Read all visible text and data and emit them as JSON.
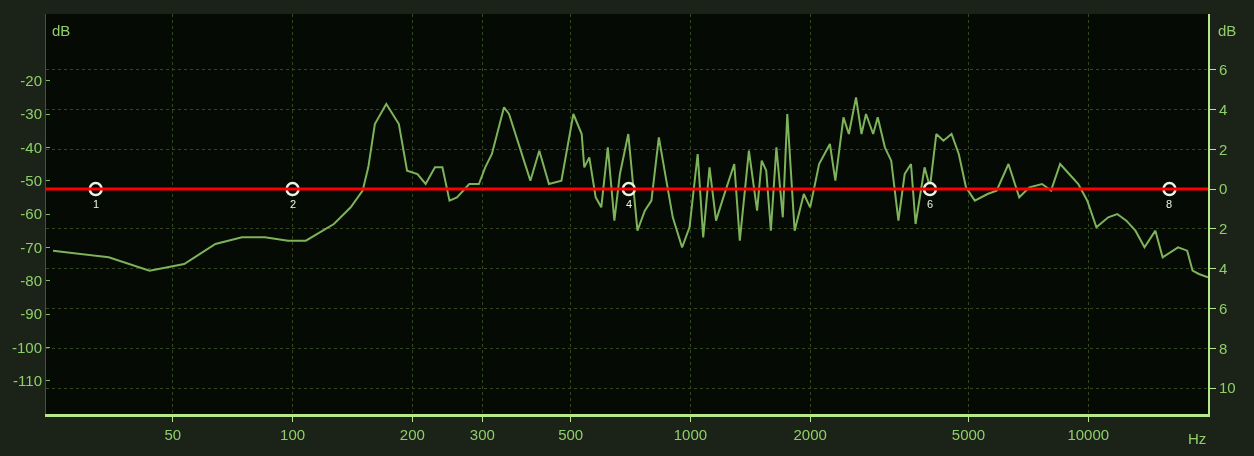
{
  "chart_data": {
    "type": "line",
    "xlabel": "Hz",
    "ylabel": "dB",
    "y2label": "dB",
    "log": "x",
    "xlim": [
      24,
      20000
    ],
    "xticks": [
      50,
      100,
      200,
      300,
      500,
      1000,
      2000,
      5000,
      10000
    ],
    "ylim": [
      -120,
      0
    ],
    "yticks": [
      -20,
      -30,
      -40,
      -50,
      -60,
      -70,
      -80,
      -90,
      -100,
      -110
    ],
    "y2lim": [
      -11.3,
      8.8
    ],
    "y2ticks": [
      6,
      4,
      2,
      0,
      {
        "value": -2,
        "label": "2"
      },
      {
        "value": -4,
        "label": "4"
      },
      {
        "value": -6,
        "label": "6"
      },
      {
        "value": -8,
        "label": "8"
      },
      {
        "value": -10,
        "label": "10"
      }
    ],
    "grid": true,
    "ref_lines": [
      {
        "axis": "y2",
        "value": 0,
        "color": "#ff0000"
      }
    ],
    "series": [
      {
        "color": "#7db35a",
        "x": [
          25,
          34.5,
          43.7,
          53.4,
          64,
          74.6,
          85.2,
          97.4,
          108,
          127,
          140,
          150,
          155,
          161,
          172,
          185,
          194,
          206,
          216,
          228,
          238,
          248,
          259,
          278,
          294,
          305,
          317,
          340,
          350,
          396,
          417,
          441,
          474,
          508,
          533,
          541,
          557,
          578,
          597,
          620,
          644,
          665,
          698,
          736,
          768,
          798,
          833,
          870,
          903,
          953,
          995,
          1043,
          1077,
          1117,
          1160,
          1210,
          1289,
          1331,
          1403,
          1471,
          1511,
          1551,
          1593,
          1645,
          1707,
          1752,
          1828,
          1928,
          2000,
          2106,
          2242,
          2314,
          2425,
          2502,
          2608,
          2692,
          2763,
          2880,
          2957,
          3082,
          3197,
          3333,
          3456,
          3585,
          3681,
          3878,
          4000,
          4150,
          4325,
          4533,
          4727,
          4928,
          5187,
          5583,
          5884,
          6302,
          6707,
          7111,
          7652,
          8062,
          8498,
          8955,
          9441,
          9945,
          10484,
          11227,
          11827,
          12467,
          13140,
          13850,
          14750,
          15380,
          16820,
          17730,
          18290,
          18970,
          20000
        ],
        "values": [
          -71,
          -73,
          -77,
          -75,
          -69,
          -67,
          -67,
          -68,
          -68,
          -63,
          -58,
          -53,
          -46,
          -33,
          -27,
          -33,
          -47,
          -48,
          -51,
          -46,
          -46,
          -56,
          -55,
          -51,
          -51,
          -46,
          -42,
          -28,
          -30,
          -50,
          -41,
          -51,
          -50,
          -30,
          -36,
          -46,
          -43,
          -55,
          -58,
          -40,
          -62,
          -48,
          -36,
          -65,
          -59,
          -56,
          -37,
          -50,
          -61,
          -70,
          -64,
          -42,
          -67,
          -46,
          -62,
          -55,
          -45,
          -68,
          -41,
          -59,
          -44,
          -47,
          -65,
          -40,
          -61,
          -30,
          -65,
          -54,
          -58,
          -45,
          -39,
          -50,
          -31,
          -36,
          -25,
          -36,
          -30,
          -36,
          -31,
          -40,
          -44,
          -62,
          -48,
          -45,
          -63,
          -46,
          -52,
          -36,
          -38,
          -36,
          -42,
          -52,
          -56,
          -54,
          -53,
          -45,
          -55,
          -52,
          -51,
          -53,
          -45,
          -48,
          -51,
          -56,
          -64,
          -61,
          -60,
          -62,
          -65,
          -70,
          -65,
          -73,
          -70,
          -71,
          -77,
          -78,
          -79
        ]
      },
      {
        "type": "scatter",
        "axis": "y2",
        "color": "#e8f5e0",
        "marker": "circle",
        "x": [
          32,
          100,
          700,
          4000,
          16000
        ],
        "values": [
          0,
          0,
          0,
          0,
          0
        ]
      }
    ],
    "annotations": [
      {
        "text": "1",
        "x": 32,
        "y": -52.5
      },
      {
        "text": "2",
        "x": 100,
        "y": -52.5
      },
      {
        "text": "4",
        "x": 700,
        "y": -52.5
      },
      {
        "text": "6",
        "x": 4000,
        "y": -52.5
      },
      {
        "text": "8",
        "x": 16000,
        "y": -52.5
      }
    ]
  }
}
